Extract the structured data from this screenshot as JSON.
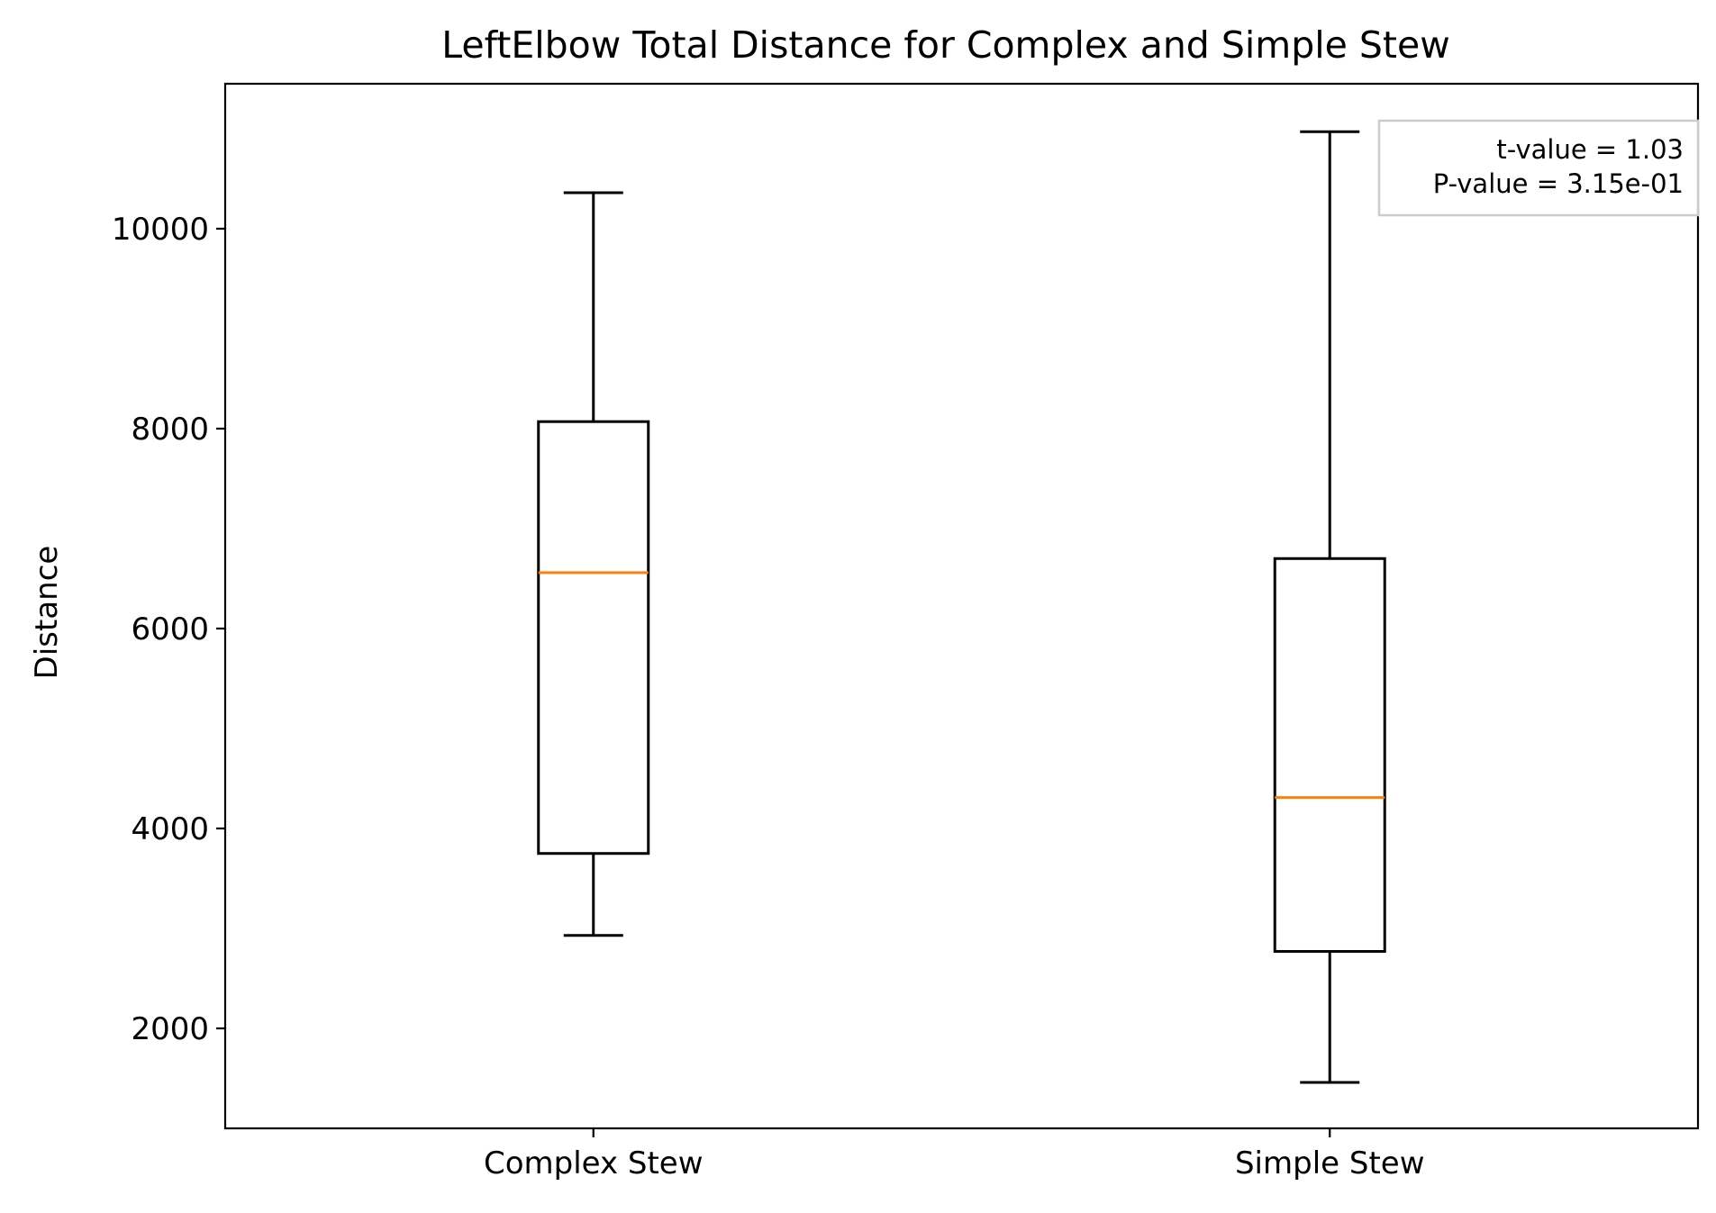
{
  "chart_data": {
    "type": "box",
    "title": "LeftElbow Total Distance for Complex and Simple Stew",
    "xlabel": "",
    "ylabel": "Distance",
    "ylim": [
      1000,
      11450
    ],
    "yticks": [
      2000,
      4000,
      6000,
      8000,
      10000
    ],
    "grid": false,
    "categories": [
      "Complex Stew",
      "Simple Stew"
    ],
    "boxes": [
      {
        "category": "Complex Stew",
        "whisker_low": 2930,
        "q1": 3750,
        "median": 6560,
        "q3": 8070,
        "whisker_high": 10360
      },
      {
        "category": "Simple Stew",
        "whisker_low": 1460,
        "q1": 2770,
        "median": 4310,
        "q3": 6700,
        "whisker_high": 10970
      }
    ],
    "annotation": {
      "lines": [
        "t-value = 1.03",
        "P-value = 3.15e-01"
      ],
      "placement": "top-right"
    },
    "colors": {
      "box": "#000000",
      "median": "#ff7f0e",
      "annotation_border": "#cccccc"
    }
  }
}
